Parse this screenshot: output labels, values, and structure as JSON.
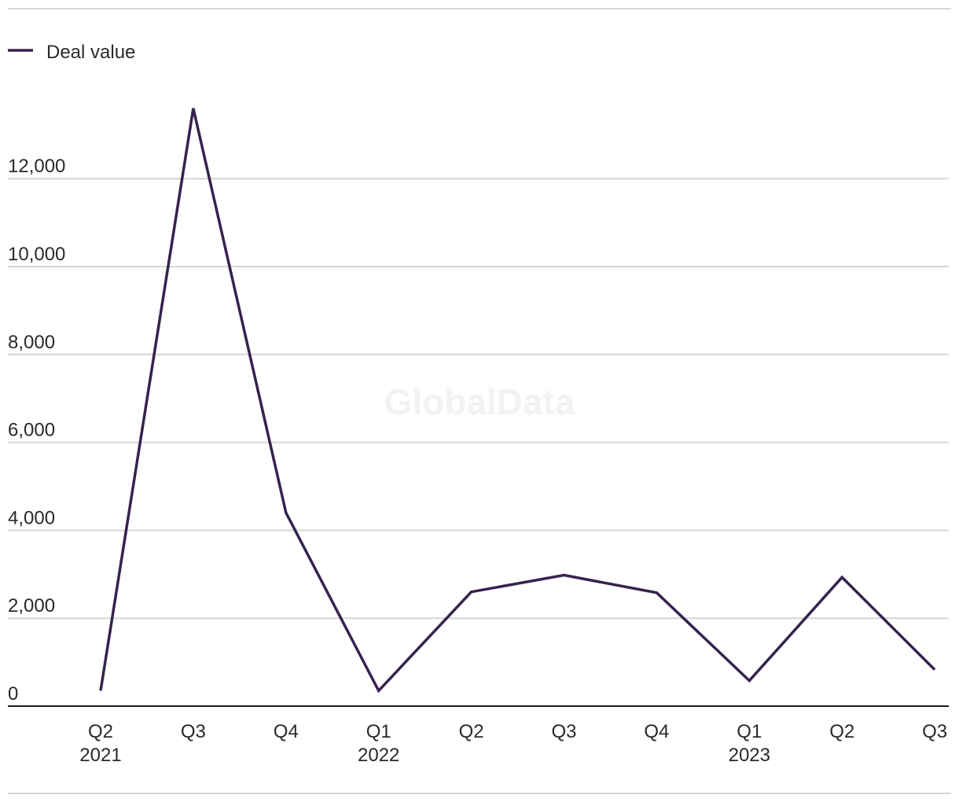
{
  "watermark": "GlobalData",
  "legend": {
    "label": "Deal value"
  },
  "colors": {
    "series": "#35234f",
    "grid": "#d6d6d6",
    "axis": "#1a1a1a",
    "frame": "#d6d6d6"
  },
  "chart_data": {
    "type": "line",
    "title": "",
    "xlabel": "",
    "ylabel": "",
    "legend_position": "top-left",
    "grid": true,
    "ylim": [
      0,
      14000
    ],
    "yticks": [
      0,
      2000,
      4000,
      6000,
      8000,
      10000,
      12000
    ],
    "ytick_labels": [
      "0",
      "2,000",
      "4,000",
      "6,000",
      "8,000",
      "10,000",
      "12,000"
    ],
    "categories": [
      {
        "quarter": "Q2",
        "year": "2021"
      },
      {
        "quarter": "Q3",
        "year": ""
      },
      {
        "quarter": "Q4",
        "year": ""
      },
      {
        "quarter": "Q1",
        "year": "2022"
      },
      {
        "quarter": "Q2",
        "year": ""
      },
      {
        "quarter": "Q3",
        "year": ""
      },
      {
        "quarter": "Q4",
        "year": ""
      },
      {
        "quarter": "Q1",
        "year": "2023"
      },
      {
        "quarter": "Q2",
        "year": ""
      },
      {
        "quarter": "Q3",
        "year": ""
      }
    ],
    "series": [
      {
        "name": "Deal value",
        "values": [
          350,
          13600,
          4400,
          350,
          2600,
          2980,
          2580,
          580,
          2930,
          830
        ]
      }
    ]
  }
}
